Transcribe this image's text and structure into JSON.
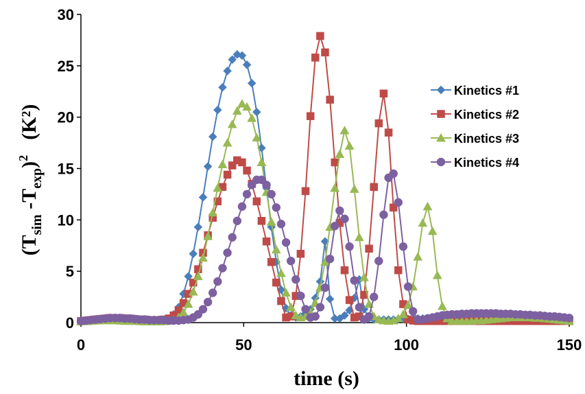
{
  "chart_data": {
    "type": "line",
    "xlabel": "time (s)",
    "ylabel": {
      "open": "(T",
      "sub1": "sim",
      "mid": " -T",
      "sub2": "exp",
      "close": ")",
      "sup": "2",
      "unit": "(K²)"
    },
    "xlim": [
      0,
      150
    ],
    "ylim": [
      0,
      30
    ],
    "xticks": [
      "0",
      "50",
      "100",
      "150"
    ],
    "yticks": [
      "0",
      "5",
      "10",
      "15",
      "20",
      "25",
      "30"
    ],
    "grid": false,
    "legend_position": "right",
    "x": [
      0,
      1.5,
      3,
      4.5,
      6,
      7.5,
      9,
      10.5,
      12,
      13.5,
      15,
      16.5,
      18,
      19.5,
      21,
      22.5,
      24,
      25.5,
      27,
      28.5,
      30,
      31.5,
      33,
      34.5,
      36,
      37.5,
      39,
      40.5,
      42,
      43.5,
      45,
      46.5,
      48,
      49.5,
      51,
      52.5,
      54,
      55.5,
      57,
      58.5,
      60,
      61.5,
      63,
      64.5,
      66,
      67.5,
      69,
      70.5,
      72,
      73.5,
      75,
      76.5,
      78,
      79.5,
      81,
      82.5,
      84,
      85.5,
      87,
      88.5,
      90,
      91.5,
      93,
      94.5,
      96,
      97.5,
      99,
      100.5,
      102,
      103.5,
      105,
      106.5,
      108,
      109.5,
      111,
      112.5,
      114,
      115.5,
      117,
      118.5,
      120,
      121.5,
      123,
      124.5,
      126,
      127.5,
      129,
      130.5,
      132,
      133.5,
      135,
      136.5,
      138,
      139.5,
      141,
      142.5,
      144,
      145.5,
      147,
      148.5,
      150
    ],
    "series": [
      {
        "name": "Kinetics #1",
        "color": "#4a7ebb",
        "marker": "diamond",
        "values": [
          0.15,
          0.2,
          0.25,
          0.3,
          0.35,
          0.4,
          0.4,
          0.4,
          0.35,
          0.3,
          0.3,
          0.3,
          0.25,
          0.2,
          0.2,
          0.2,
          0.2,
          0.25,
          0.4,
          0.8,
          1.5,
          2.8,
          4.5,
          6.7,
          9.3,
          12.2,
          15.2,
          18.1,
          20.7,
          22.9,
          24.5,
          25.6,
          26.1,
          26.0,
          25.1,
          23.3,
          20.5,
          17.0,
          13.1,
          9.3,
          5.9,
          3.2,
          1.4,
          0.7,
          0.5,
          0.6,
          0.9,
          1.3,
          2.4,
          4.0,
          7.9,
          2.3,
          0.4,
          0.4,
          0.7,
          1.2,
          2.4,
          4.2,
          1.3,
          0.4,
          0.3,
          0.3,
          0.3,
          0.3,
          0.3,
          0.35,
          0.35,
          0.35,
          0.4,
          0.4,
          0.4,
          0.45,
          0.45,
          0.5,
          0.5,
          0.5,
          0.5,
          0.5,
          0.5,
          0.5,
          0.5,
          0.5,
          0.45,
          0.45,
          0.45,
          0.4,
          0.4,
          0.4,
          0.4,
          0.35,
          0.35,
          0.35,
          0.3,
          0.3,
          0.3,
          0.3,
          0.25,
          0.25,
          0.2,
          0.2,
          0.2
        ]
      },
      {
        "name": "Kinetics #2",
        "color": "#be4b48",
        "marker": "square",
        "values": [
          0.15,
          0.2,
          0.25,
          0.3,
          0.35,
          0.4,
          0.45,
          0.45,
          0.45,
          0.4,
          0.4,
          0.35,
          0.3,
          0.3,
          0.25,
          0.25,
          0.25,
          0.3,
          0.4,
          0.7,
          1.2,
          1.9,
          2.8,
          3.9,
          5.2,
          6.8,
          8.5,
          10.2,
          11.8,
          13.2,
          14.4,
          15.3,
          15.8,
          15.6,
          14.8,
          13.5,
          11.8,
          9.9,
          7.9,
          5.9,
          3.9,
          2.1,
          0.5,
          0.6,
          2.6,
          6.7,
          12.8,
          20.1,
          25.8,
          27.9,
          26.3,
          21.7,
          15.6,
          9.7,
          5.1,
          2.2,
          0.5,
          0.6,
          2.7,
          7.2,
          13.2,
          19.4,
          22.3,
          18.5,
          11.2,
          5.1,
          1.8,
          0.3,
          0.2,
          0.15,
          0.15,
          0.15,
          0.15,
          0.15,
          0.15,
          0.15,
          0.15,
          0.15,
          0.15,
          0.15,
          0.15,
          0.15,
          0.15,
          0.15,
          0.15,
          0.15,
          0.15,
          0.15,
          0.15,
          0.15,
          0.15,
          0.15,
          0.15,
          0.15,
          0.15,
          0.15,
          0.15,
          0.15,
          0.15,
          0.15,
          0.15
        ]
      },
      {
        "name": "Kinetics #3",
        "color": "#98b954",
        "marker": "triangle",
        "values": [
          0.1,
          0.12,
          0.15,
          0.18,
          0.2,
          0.2,
          0.2,
          0.2,
          0.18,
          0.15,
          0.15,
          0.15,
          0.12,
          0.1,
          0.1,
          0.1,
          0.1,
          0.12,
          0.15,
          0.25,
          0.5,
          1.0,
          1.8,
          3.0,
          4.5,
          6.3,
          8.4,
          10.7,
          13.1,
          15.4,
          17.5,
          19.3,
          20.6,
          21.3,
          21.0,
          19.9,
          18.0,
          15.6,
          12.7,
          9.8,
          7.1,
          4.8,
          2.9,
          1.5,
          0.7,
          0.5,
          0.6,
          1.0,
          1.9,
          3.4,
          5.9,
          9.3,
          13.1,
          16.4,
          18.7,
          17.2,
          13.0,
          8.3,
          4.4,
          1.8,
          0.6,
          0.3,
          0.2,
          0.15,
          0.2,
          0.4,
          0.8,
          1.7,
          3.5,
          6.4,
          9.7,
          11.3,
          8.9,
          4.6,
          1.6,
          0.4,
          0.15,
          0.15,
          0.15,
          0.15,
          0.15,
          0.2,
          0.2,
          0.25,
          0.3,
          0.35,
          0.4,
          0.45,
          0.5,
          0.5,
          0.5,
          0.5,
          0.5,
          0.45,
          0.45,
          0.4,
          0.35,
          0.3,
          0.25,
          0.2,
          0.15
        ]
      },
      {
        "name": "Kinetics #4",
        "color": "#7d60a0",
        "marker": "circle",
        "values": [
          0.15,
          0.2,
          0.25,
          0.3,
          0.35,
          0.4,
          0.45,
          0.45,
          0.45,
          0.4,
          0.4,
          0.35,
          0.3,
          0.3,
          0.25,
          0.25,
          0.25,
          0.25,
          0.2,
          0.2,
          0.2,
          0.25,
          0.3,
          0.5,
          0.8,
          1.3,
          2.0,
          2.9,
          4.0,
          5.3,
          6.8,
          8.3,
          9.9,
          11.3,
          12.5,
          13.4,
          13.9,
          13.9,
          13.4,
          12.5,
          11.2,
          9.6,
          7.8,
          6.0,
          4.2,
          2.6,
          1.3,
          0.5,
          0.6,
          1.5,
          3.4,
          6.2,
          9.4,
          10.9,
          10.1,
          7.4,
          4.1,
          1.5,
          0.3,
          0.6,
          2.5,
          6.0,
          10.5,
          14.1,
          14.5,
          11.7,
          7.4,
          3.5,
          1.1,
          0.3,
          0.3,
          0.4,
          0.5,
          0.6,
          0.7,
          0.75,
          0.8,
          0.8,
          0.85,
          0.85,
          0.9,
          0.9,
          0.9,
          0.9,
          0.9,
          0.9,
          0.85,
          0.85,
          0.85,
          0.8,
          0.8,
          0.75,
          0.75,
          0.7,
          0.7,
          0.65,
          0.6,
          0.6,
          0.55,
          0.5,
          0.45
        ]
      }
    ]
  }
}
